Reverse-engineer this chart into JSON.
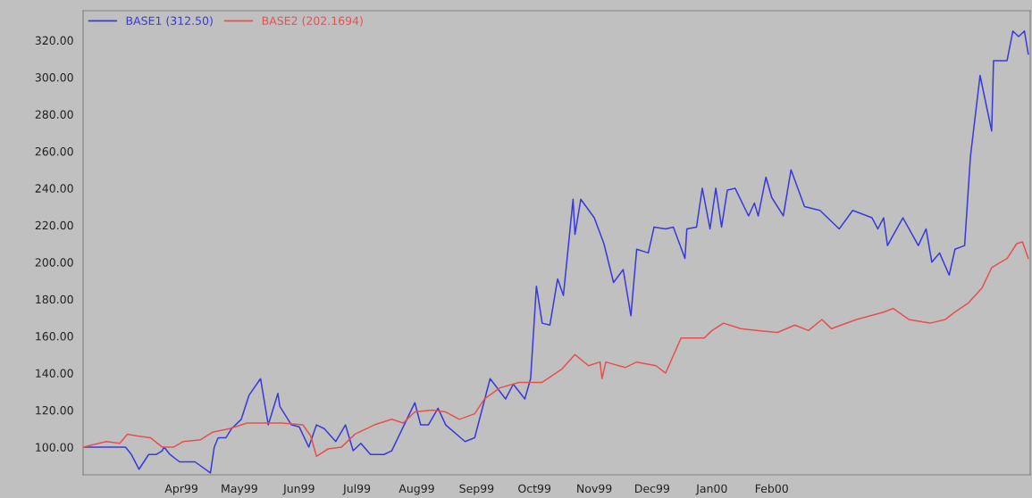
{
  "chart_data": {
    "type": "line",
    "xlim": [
      "1999-02-09",
      "2000-06-14"
    ],
    "xticks": [
      {
        "value": "1999-04-01",
        "label": "Apr99"
      },
      {
        "value": "1999-05-01",
        "label": "May99"
      },
      {
        "value": "1999-06-01",
        "label": "Jun99"
      },
      {
        "value": "1999-07-01",
        "label": "Jul99"
      },
      {
        "value": "1999-08-01",
        "label": "Aug99"
      },
      {
        "value": "1999-09-01",
        "label": "Sep99"
      },
      {
        "value": "1999-10-01",
        "label": "Oct99"
      },
      {
        "value": "1999-11-01",
        "label": "Nov99"
      },
      {
        "value": "1999-12-01",
        "label": "Dec99"
      },
      {
        "value": "2000-01-01",
        "label": "Jan00"
      },
      {
        "value": "2000-02-01",
        "label": "Feb00"
      }
    ],
    "ylim": [
      85,
      336
    ],
    "yticks": [
      {
        "value": 100,
        "label": "100.00"
      },
      {
        "value": 120,
        "label": "120.00"
      },
      {
        "value": 140,
        "label": "140.00"
      },
      {
        "value": 160,
        "label": "160.00"
      },
      {
        "value": 180,
        "label": "180.00"
      },
      {
        "value": 200,
        "label": "200.00"
      },
      {
        "value": 220,
        "label": "220.00"
      },
      {
        "value": 240,
        "label": "240.00"
      },
      {
        "value": 260,
        "label": "260.00"
      },
      {
        "value": 280,
        "label": "280.00"
      },
      {
        "value": 300,
        "label": "300.00"
      },
      {
        "value": 320,
        "label": "320.00"
      }
    ],
    "grid": false,
    "legend": "top left",
    "series": [
      {
        "name": "BASE1 (312.50)",
        "color": "#3a3adc",
        "x": [
          "1999-02-09",
          "1999-03-03",
          "1999-03-06",
          "1999-03-10",
          "1999-03-15",
          "1999-03-19",
          "1999-03-22",
          "1999-03-23",
          "1999-03-26",
          "1999-03-31",
          "1999-04-04",
          "1999-04-08",
          "1999-04-16",
          "1999-04-18",
          "1999-04-20",
          "1999-04-24",
          "1999-04-27",
          "1999-05-02",
          "1999-05-06",
          "1999-05-12",
          "1999-05-16",
          "1999-05-21",
          "1999-05-22",
          "1999-05-28",
          "1999-06-01",
          "1999-06-06",
          "1999-06-10",
          "1999-06-14",
          "1999-06-20",
          "1999-06-25",
          "1999-06-29",
          "1999-07-03",
          "1999-07-08",
          "1999-07-15",
          "1999-07-19",
          "1999-07-31",
          "1999-08-03",
          "1999-08-07",
          "1999-08-12",
          "1999-08-16",
          "1999-08-26",
          "1999-08-31",
          "1999-09-08",
          "1999-09-16",
          "1999-09-20",
          "1999-09-26",
          "1999-09-29",
          "1999-10-02",
          "1999-10-05",
          "1999-10-09",
          "1999-10-13",
          "1999-10-16",
          "1999-10-21",
          "1999-10-22",
          "1999-10-25",
          "1999-11-01",
          "1999-11-06",
          "1999-11-11",
          "1999-11-16",
          "1999-11-20",
          "1999-11-23",
          "1999-11-29",
          "1999-12-02",
          "1999-12-08",
          "1999-12-12",
          "1999-12-18",
          "1999-12-19",
          "1999-12-24",
          "1999-12-27",
          "1999-12-31",
          "2000-01-03",
          "2000-01-06",
          "2000-01-09",
          "2000-01-13",
          "2000-01-20",
          "2000-01-23",
          "2000-01-25",
          "2000-01-29",
          "2000-02-01",
          "2000-02-07",
          "2000-02-11",
          "2000-02-18",
          "2000-02-26",
          "2000-03-07",
          "2000-03-14",
          "2000-03-24",
          "2000-03-27",
          "2000-03-30",
          "2000-04-01",
          "2000-04-09",
          "2000-04-17",
          "2000-04-21",
          "2000-04-24",
          "2000-04-28",
          "2000-05-03",
          "2000-05-06",
          "2000-05-11",
          "2000-05-14",
          "2000-05-19",
          "2000-05-25",
          "2000-05-26",
          "2000-06-02",
          "2000-06-05",
          "2000-06-08",
          "2000-06-11",
          "2000-06-13"
        ],
        "values": [
          100,
          100,
          96,
          88,
          96,
          96,
          98,
          100,
          96,
          92,
          92,
          92,
          86,
          100,
          105,
          105,
          110,
          115,
          128,
          137,
          112,
          129,
          122,
          112,
          111,
          100,
          112,
          110,
          103,
          112,
          98,
          102,
          96,
          96,
          98,
          124,
          112,
          112,
          121,
          112,
          103,
          105,
          137,
          126,
          134,
          126,
          137,
          187,
          167,
          166,
          191,
          182,
          234,
          215,
          234,
          224,
          210,
          189,
          196,
          171,
          207,
          205,
          219,
          218,
          219,
          202,
          218,
          219,
          240,
          218,
          240,
          219,
          239,
          240,
          225,
          232,
          225,
          246,
          235,
          225,
          250,
          230,
          228,
          218,
          228,
          224,
          218,
          224,
          209,
          224,
          209,
          218,
          200,
          205,
          193,
          207,
          209,
          257,
          301,
          271,
          309,
          309,
          325,
          322,
          325,
          312.5
        ]
      },
      {
        "name": "BASE2 (202.1694)",
        "color": "#e85050",
        "x": [
          "1999-02-09",
          "1999-02-21",
          "1999-02-28",
          "1999-03-04",
          "1999-03-09",
          "1999-03-16",
          "1999-03-22",
          "1999-03-28",
          "1999-04-02",
          "1999-04-11",
          "1999-04-17",
          "1999-04-26",
          "1999-05-05",
          "1999-05-15",
          "1999-05-23",
          "1999-06-03",
          "1999-06-07",
          "1999-06-10",
          "1999-06-16",
          "1999-06-23",
          "1999-06-30",
          "1999-07-10",
          "1999-07-19",
          "1999-07-25",
          "1999-07-31",
          "1999-08-09",
          "1999-08-16",
          "1999-08-23",
          "1999-08-31",
          "1999-09-05",
          "1999-09-13",
          "1999-09-23",
          "1999-10-05",
          "1999-10-15",
          "1999-10-22",
          "1999-10-29",
          "1999-11-04",
          "1999-11-05",
          "1999-11-07",
          "1999-11-17",
          "1999-11-23",
          "1999-12-03",
          "1999-12-08",
          "1999-12-16",
          "1999-12-28",
          "2000-01-01",
          "2000-01-07",
          "2000-01-16",
          "2000-01-25",
          "2000-02-04",
          "2000-02-13",
          "2000-02-20",
          "2000-02-27",
          "2000-03-03",
          "2000-03-08",
          "2000-03-16",
          "2000-03-30",
          "2000-04-04",
          "2000-04-12",
          "2000-04-23",
          "2000-05-01",
          "2000-05-06",
          "2000-05-13",
          "2000-05-20",
          "2000-05-25",
          "2000-06-02",
          "2000-06-07",
          "2000-06-10",
          "2000-06-13"
        ],
        "values": [
          100,
          103,
          102,
          107,
          106,
          105,
          100,
          100,
          103,
          104,
          108,
          110,
          113,
          113,
          113,
          112,
          106,
          95,
          99,
          100,
          107,
          112,
          115,
          113,
          119,
          120,
          119,
          115,
          118,
          126,
          132,
          135,
          135,
          142,
          150,
          144,
          146,
          137,
          146,
          143,
          146,
          144,
          140,
          159,
          159,
          163,
          167,
          164,
          163,
          162,
          166,
          163,
          169,
          164,
          166,
          169,
          173,
          175,
          169,
          167,
          169,
          173,
          178,
          186,
          197,
          202,
          210,
          211,
          202
        ]
      }
    ]
  }
}
